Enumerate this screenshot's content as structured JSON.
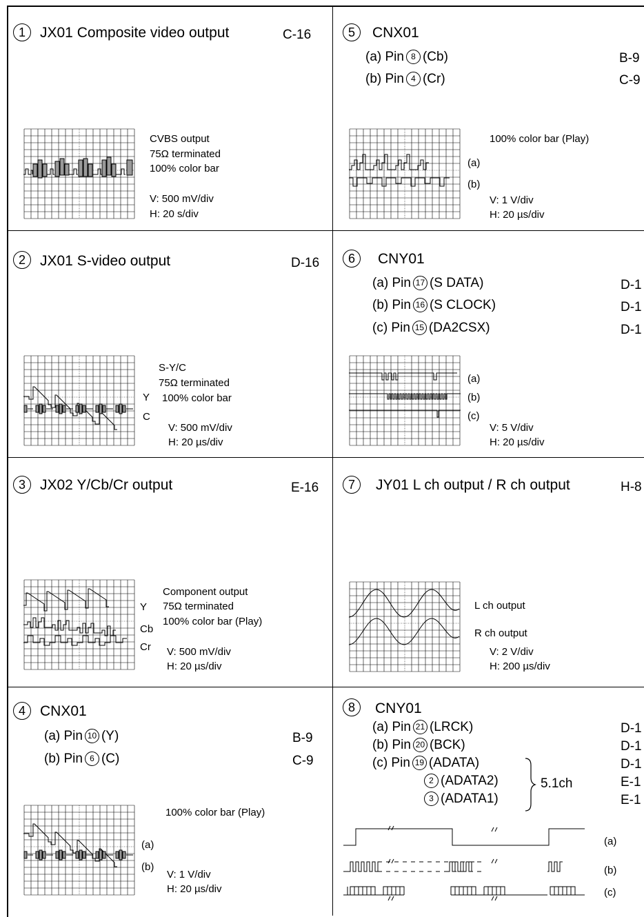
{
  "panels": {
    "p1": {
      "num": "1",
      "title": "JX01 Composite video output",
      "ref": "C-16",
      "notes": [
        "CVBS output",
        "75Ω terminated",
        "100% color bar",
        "V: 500 mV/div",
        "H: 20  s/div"
      ]
    },
    "p2": {
      "num": "2",
      "title": "JX01 S-video output",
      "ref": "D-16",
      "notes": [
        "S-Y/C",
        "75Ω terminated",
        "100% color bar",
        "V: 500 mV/div",
        "H: 20 µs/div"
      ],
      "labels": [
        "Y",
        "C"
      ]
    },
    "p3": {
      "num": "3",
      "title": "JX02 Y/Cb/Cr output",
      "ref": "E-16",
      "notes": [
        "Component output",
        "75Ω terminated",
        "100% color bar (Play)",
        "V: 500 mV/div",
        "H: 20 µs/div"
      ],
      "labels": [
        "Y",
        "Cb",
        "Cr"
      ]
    },
    "p4": {
      "num": "4",
      "title": "CNX01",
      "pins": [
        {
          "pre": "(a) Pin",
          "n": "10",
          "name": "(Y)",
          "ref": "B-9"
        },
        {
          "pre": "(b) Pin",
          "n": "6",
          "name": "(C)",
          "ref": "C-9"
        }
      ],
      "notes": [
        "100% color bar (Play)",
        "V: 1 V/div",
        "H: 20 µs/div"
      ],
      "labels": [
        "(a)",
        "(b)"
      ]
    },
    "p5": {
      "num": "5",
      "title": "CNX01",
      "pins": [
        {
          "pre": "(a) Pin",
          "n": "8",
          "name": "(Cb)",
          "ref": "B-9"
        },
        {
          "pre": "(b) Pin",
          "n": "4",
          "name": "(Cr)",
          "ref": "C-9"
        }
      ],
      "notes": [
        "100% color bar (Play)",
        "V: 1 V/div",
        "H: 20 µs/div"
      ],
      "labels": [
        "(a)",
        "(b)"
      ]
    },
    "p6": {
      "num": "6",
      "title": "CNY01",
      "pins": [
        {
          "pre": "(a) Pin",
          "n": "17",
          "name": "(S DATA)",
          "ref": "D-1"
        },
        {
          "pre": "(b) Pin",
          "n": "16",
          "name": "(S CLOCK)",
          "ref": "D-1"
        },
        {
          "pre": "(c) Pin",
          "n": "15",
          "name": "(DA2CSX)",
          "ref": "D-1"
        }
      ],
      "notes": [
        "V: 5 V/div",
        "H: 20 µs/div"
      ],
      "labels": [
        "(a)",
        "(b)",
        "(c)"
      ]
    },
    "p7": {
      "num": "7",
      "title": "JY01 L ch output / R ch output",
      "ref": "H-8",
      "notes": [
        "L ch output",
        "R ch output",
        "V: 2 V/div",
        "H: 200 µs/div"
      ]
    },
    "p8": {
      "num": "8",
      "title": "CNY01",
      "pins": [
        {
          "pre": "(a) Pin",
          "n": "21",
          "name": "(LRCK)",
          "ref": "D-1"
        },
        {
          "pre": "(b) Pin",
          "n": "20",
          "name": "(BCK)",
          "ref": "D-1"
        },
        {
          "pre": "(c) Pin",
          "n": "19",
          "name": "(ADATA)",
          "ref": "D-1"
        }
      ],
      "extra": [
        {
          "n": "2",
          "name": "(ADATA2)",
          "ref": "E-1"
        },
        {
          "n": "3",
          "name": "(ADATA1)",
          "ref": "E-1"
        }
      ],
      "group": "5.1ch",
      "labels": [
        "(a)",
        "(b)",
        "(c)"
      ]
    }
  }
}
